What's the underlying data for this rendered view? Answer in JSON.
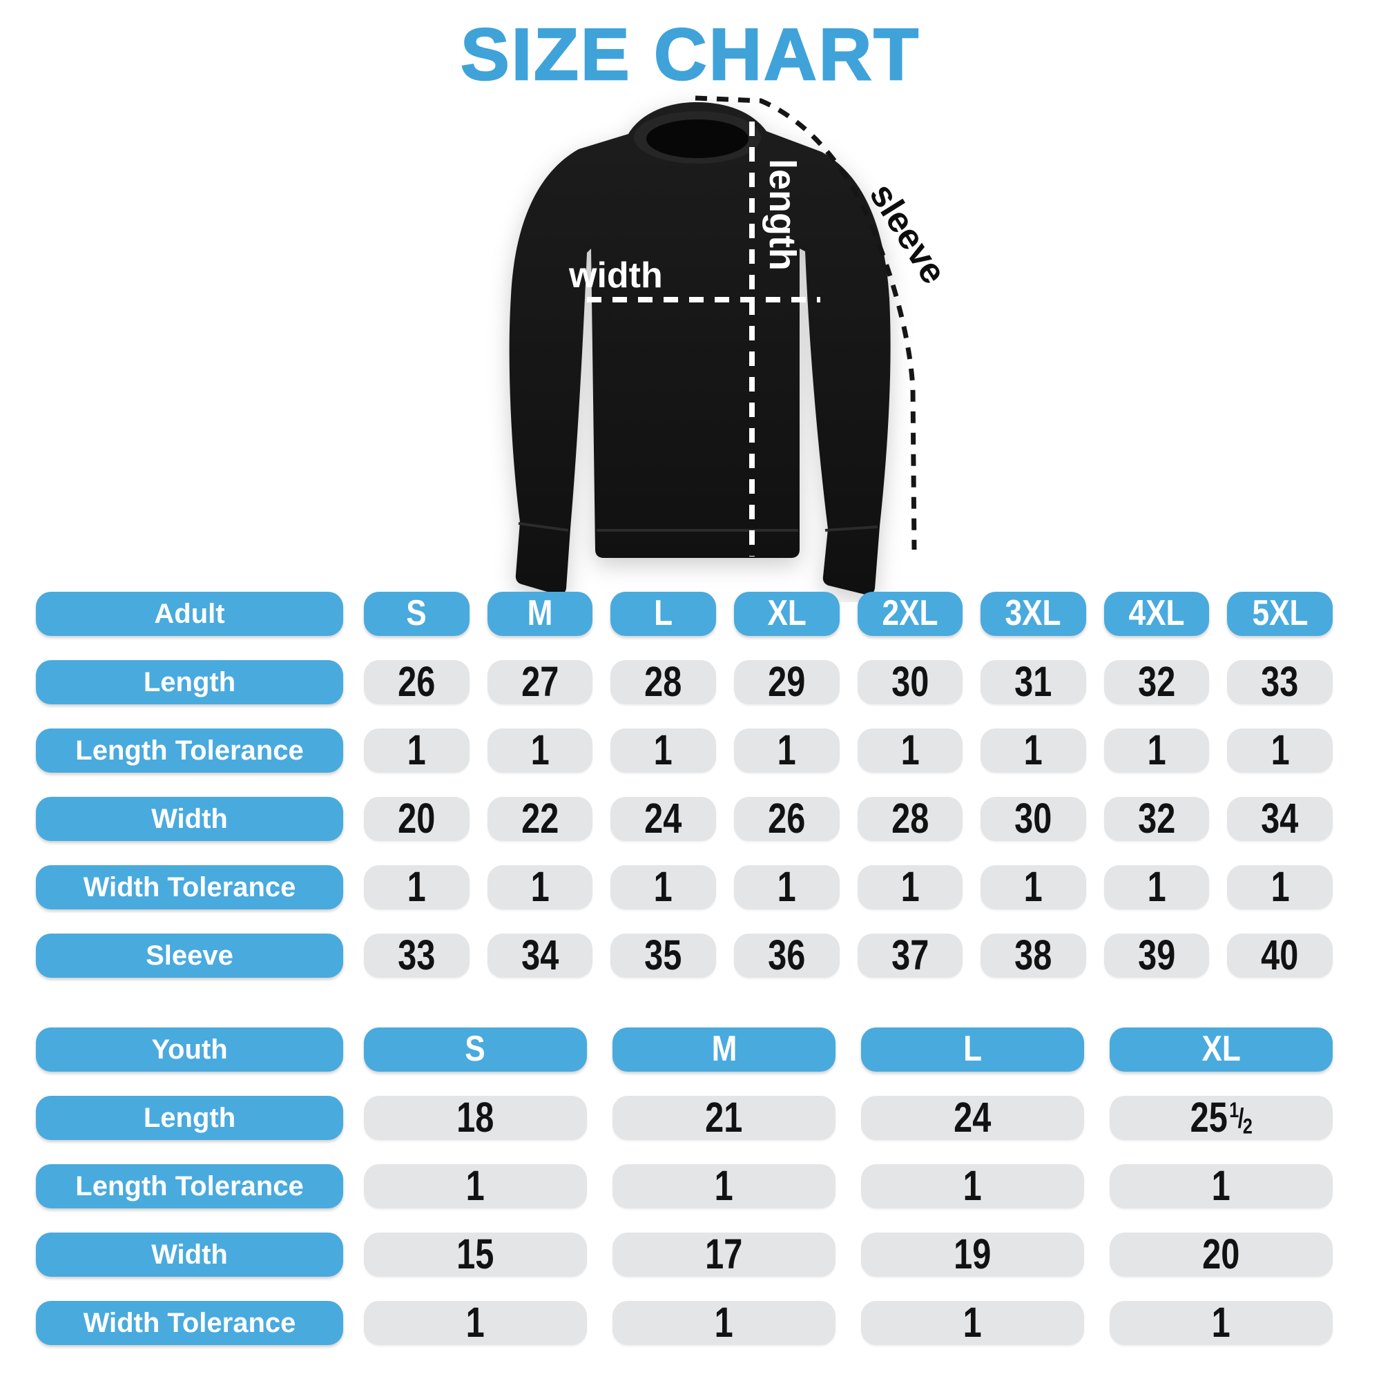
{
  "title": "SIZE CHART",
  "colors": {
    "title_blue": "#3FA3D9",
    "accent_blue": "#49AADE",
    "cell_gray": "#E4E5E6",
    "shirt_black": "#161616",
    "number_black": "#121212"
  },
  "diagram": {
    "labels": {
      "length": "length",
      "width": "width",
      "sleeve": "sleeve"
    }
  },
  "adult_table": {
    "header": {
      "label": "Adult",
      "sizes": [
        "S",
        "M",
        "L",
        "XL",
        "2XL",
        "3XL",
        "4XL",
        "5XL"
      ]
    },
    "rows": [
      {
        "label": "Length",
        "values": [
          "26",
          "27",
          "28",
          "29",
          "30",
          "31",
          "32",
          "33"
        ]
      },
      {
        "label": "Length Tolerance",
        "values": [
          "1",
          "1",
          "1",
          "1",
          "1",
          "1",
          "1",
          "1"
        ]
      },
      {
        "label": "Width",
        "values": [
          "20",
          "22",
          "24",
          "26",
          "28",
          "30",
          "32",
          "34"
        ]
      },
      {
        "label": "Width Tolerance",
        "values": [
          "1",
          "1",
          "1",
          "1",
          "1",
          "1",
          "1",
          "1"
        ]
      },
      {
        "label": "Sleeve",
        "values": [
          "33",
          "34",
          "35",
          "36",
          "37",
          "38",
          "39",
          "40"
        ]
      }
    ]
  },
  "youth_table": {
    "header": {
      "label": "Youth",
      "sizes": [
        "S",
        "M",
        "L",
        "XL"
      ]
    },
    "rows": [
      {
        "label": "Length",
        "values": [
          "18",
          "21",
          "24",
          "25 1/2"
        ]
      },
      {
        "label": "Length Tolerance",
        "values": [
          "1",
          "1",
          "1",
          "1"
        ]
      },
      {
        "label": "Width",
        "values": [
          "15",
          "17",
          "19",
          "20"
        ]
      },
      {
        "label": "Width Tolerance",
        "values": [
          "1",
          "1",
          "1",
          "1"
        ]
      }
    ]
  },
  "chart_data": [
    {
      "type": "table",
      "title": "Adult",
      "columns": [
        "Adult",
        "S",
        "M",
        "L",
        "XL",
        "2XL",
        "3XL",
        "4XL",
        "5XL"
      ],
      "rows": [
        [
          "Length",
          26,
          27,
          28,
          29,
          30,
          31,
          32,
          33
        ],
        [
          "Length Tolerance",
          1,
          1,
          1,
          1,
          1,
          1,
          1,
          1
        ],
        [
          "Width",
          20,
          22,
          24,
          26,
          28,
          30,
          32,
          34
        ],
        [
          "Width Tolerance",
          1,
          1,
          1,
          1,
          1,
          1,
          1,
          1
        ],
        [
          "Sleeve",
          33,
          34,
          35,
          36,
          37,
          38,
          39,
          40
        ]
      ]
    },
    {
      "type": "table",
      "title": "Youth",
      "columns": [
        "Youth",
        "S",
        "M",
        "L",
        "XL"
      ],
      "rows": [
        [
          "Length",
          18,
          21,
          24,
          25.5
        ],
        [
          "Length Tolerance",
          1,
          1,
          1,
          1
        ],
        [
          "Width",
          15,
          17,
          19,
          20
        ],
        [
          "Width Tolerance",
          1,
          1,
          1,
          1
        ]
      ]
    }
  ]
}
